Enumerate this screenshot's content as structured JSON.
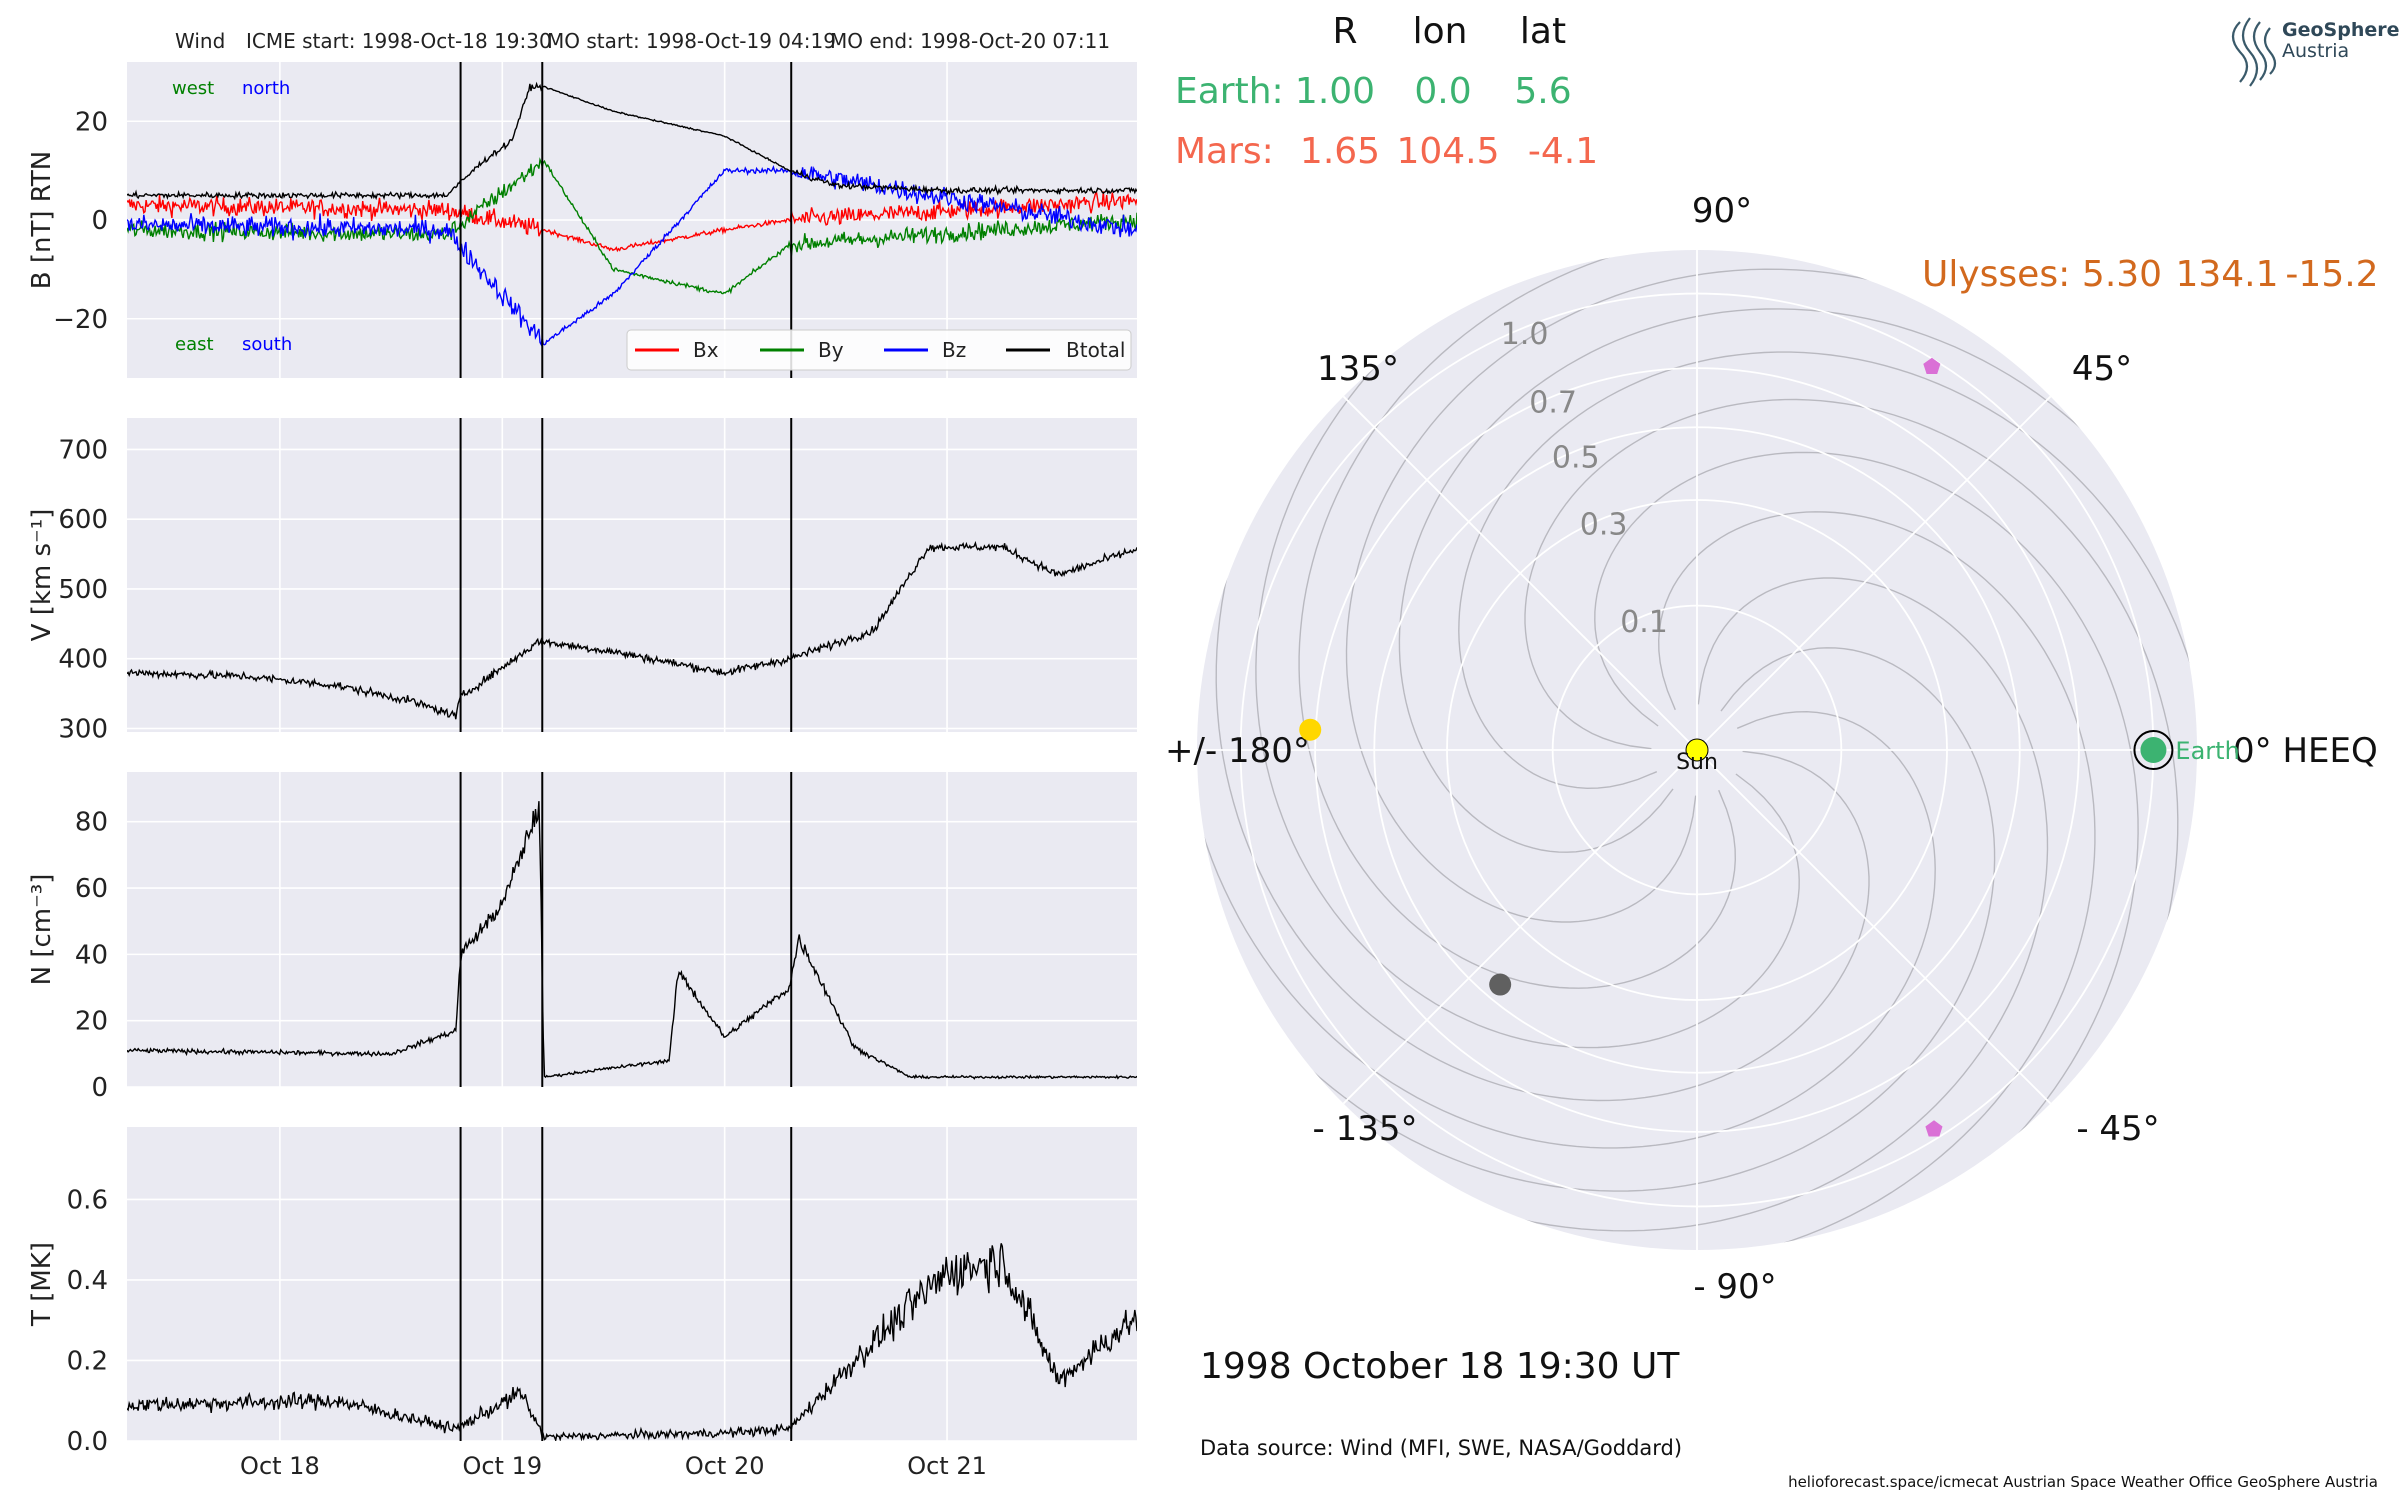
{
  "header": {
    "spacecraft": "Wind",
    "icme_start": "ICME start: 1998-Oct-18 19:30",
    "mo_start": "MO start: 1998-Oct-19 04:19",
    "mo_end": "MO end: 1998-Oct-20 07:11"
  },
  "logo": {
    "line1": "GeoSphere",
    "line2": "Austria"
  },
  "position_table": {
    "columns": [
      "R",
      "lon",
      "lat"
    ],
    "rows": [
      {
        "name": "Earth:",
        "R": "1.00",
        "lon": "0.0",
        "lat": "5.6",
        "color": "#3cb371"
      },
      {
        "name": "Mars:",
        "R": "1.65",
        "lon": "104.5",
        "lat": "-4.1",
        "color": "#f4674e"
      }
    ],
    "ulysses": {
      "name": "Ulysses:",
      "R": "5.30",
      "lon": "134.1",
      "lat": "-15.2",
      "color": "#d2691e"
    }
  },
  "polar": {
    "angle_labels": [
      "90°",
      "45°",
      "0° HEEQ",
      "- 45°",
      "- 90°",
      "- 135°",
      "+/- 180°",
      "135°"
    ],
    "radial_ticks": [
      "0.1",
      "0.3",
      "0.5",
      "0.7",
      "1.0"
    ],
    "radial_values": [
      0.1,
      0.3,
      0.5,
      0.7,
      1.0
    ],
    "sun_label": "Sun",
    "earth_label": "Earth",
    "bodies": [
      {
        "name": "Earth",
        "r": 1.0,
        "lon": 0.0,
        "color": "#3cb371",
        "marker": "circle"
      },
      {
        "name": "unlabeled",
        "r": 0.72,
        "lon": 177.0,
        "color": "#ffd700",
        "marker": "circle"
      },
      {
        "name": "unlabeled",
        "r": 0.45,
        "lon": -130.0,
        "color": "#606060",
        "marker": "circle"
      },
      {
        "name": "unlabeled",
        "r": 0.97,
        "lon": 58.5,
        "color": "#da70d6",
        "marker": "pentagon"
      },
      {
        "name": "unlabeled",
        "r": 0.96,
        "lon": -58.0,
        "color": "#da70d6",
        "marker": "pentagon"
      }
    ]
  },
  "date_text": "1998 October 18  19:30 UT",
  "data_source": "Data source: Wind (MFI, SWE, NASA/Goddard)",
  "footer": "helioforecast.space/icmecat   Austrian Space Weather Office   GeoSphere Austria",
  "colors": {
    "bx": "#ff0000",
    "by": "#008000",
    "bz": "#0000ff",
    "btotal": "#000000",
    "panel_bg": "#eaeaf2",
    "grid": "#ffffff"
  },
  "chart_data": [
    {
      "type": "line",
      "ylabel": "B [nT] RTN",
      "ylim": [
        -32,
        32
      ],
      "yticks": [
        20,
        0,
        -20
      ],
      "ytick_labels": [
        "20",
        "0",
        "−20"
      ],
      "annotations": {
        "west": "west",
        "north": "north",
        "east": "east",
        "south": "south"
      },
      "legend": [
        "Bx",
        "By",
        "Bz",
        "Btotal"
      ],
      "legend_placement": "lower-right",
      "xlim_days": [
        "1998-10-17 07:30",
        "1998-10-21 20:30"
      ],
      "event_lines": [
        "1998-10-18 19:30",
        "1998-10-19 04:19",
        "1998-10-20 07:11"
      ],
      "series": [
        {
          "name": "Btotal",
          "x": [
            "1998-10-17 08:00",
            "1998-10-18 00:00",
            "1998-10-18 18:00",
            "1998-10-18 22:00",
            "1998-10-19 01:00",
            "1998-10-19 03:00",
            "1998-10-19 04:30",
            "1998-10-19 12:00",
            "1998-10-20 00:00",
            "1998-10-20 07:00",
            "1998-10-20 12:00",
            "1998-10-21 00:00",
            "1998-10-21 20:00"
          ],
          "y": [
            5,
            5,
            5,
            12,
            16,
            27,
            27,
            22,
            17,
            10,
            7,
            6,
            6
          ]
        },
        {
          "name": "Bx",
          "x": [
            "1998-10-17 08:00",
            "1998-10-18 18:00",
            "1998-10-19 04:30",
            "1998-10-19 12:00",
            "1998-10-20 00:00",
            "1998-10-20 07:00",
            "1998-10-21 20:00"
          ],
          "y": [
            3,
            2,
            -2,
            -6,
            -2,
            0,
            4
          ]
        },
        {
          "name": "By",
          "x": [
            "1998-10-17 08:00",
            "1998-10-18 18:00",
            "1998-10-19 04:30",
            "1998-10-19 12:00",
            "1998-10-20 00:00",
            "1998-10-20 07:00",
            "1998-10-21 20:00"
          ],
          "y": [
            -2,
            -3,
            12,
            -10,
            -15,
            -5,
            0
          ]
        },
        {
          "name": "Bz",
          "x": [
            "1998-10-17 08:00",
            "1998-10-18 18:00",
            "1998-10-19 04:30",
            "1998-10-19 12:00",
            "1998-10-20 00:00",
            "1998-10-20 07:00",
            "1998-10-21 20:00"
          ],
          "y": [
            -1,
            -2,
            -25,
            -15,
            10,
            10,
            -2
          ]
        }
      ]
    },
    {
      "type": "line",
      "ylabel": "V [km s⁻¹]",
      "ylim": [
        295,
        745
      ],
      "yticks": [
        700,
        600,
        500,
        400,
        300
      ],
      "series": [
        {
          "name": "V",
          "x": [
            "1998-10-17 08:00",
            "1998-10-17 20:00",
            "1998-10-18 06:00",
            "1998-10-18 14:00",
            "1998-10-18 19:00",
            "1998-10-18 19:30",
            "1998-10-19 04:00",
            "1998-10-19 12:00",
            "1998-10-20 00:00",
            "1998-10-20 07:00",
            "1998-10-20 16:00",
            "1998-10-20 22:00",
            "1998-10-21 06:00",
            "1998-10-21 12:00",
            "1998-10-21 20:00"
          ],
          "y": [
            380,
            375,
            362,
            340,
            318,
            345,
            425,
            410,
            380,
            400,
            440,
            560,
            560,
            520,
            555
          ]
        }
      ]
    },
    {
      "type": "line",
      "ylabel": "N [cm⁻³]",
      "ylim": [
        0,
        95
      ],
      "yticks": [
        80,
        60,
        40,
        20,
        0
      ],
      "series": [
        {
          "name": "N",
          "x": [
            "1998-10-17 08:00",
            "1998-10-18 12:00",
            "1998-10-18 19:00",
            "1998-10-18 19:30",
            "1998-10-19 00:00",
            "1998-10-19 04:00",
            "1998-10-19 04:30",
            "1998-10-19 18:00",
            "1998-10-19 19:00",
            "1998-10-20 00:00",
            "1998-10-20 07:00",
            "1998-10-20 08:00",
            "1998-10-20 14:00",
            "1998-10-20 20:00",
            "1998-10-21 20:00"
          ],
          "y": [
            11,
            10,
            17,
            40,
            55,
            85,
            3,
            8,
            35,
            15,
            30,
            45,
            12,
            3,
            3
          ]
        }
      ]
    },
    {
      "type": "line",
      "ylabel": "T [MK]",
      "ylim": [
        0,
        0.78
      ],
      "yticks": [
        0.6,
        0.4,
        0.2,
        0.0
      ],
      "ytick_labels": [
        "0.6",
        "0.4",
        "0.2",
        "0.0"
      ],
      "xticks": [
        "Oct 18",
        "Oct 19",
        "Oct 20",
        "Oct 21"
      ],
      "series": [
        {
          "name": "T",
          "x": [
            "1998-10-17 08:00",
            "1998-10-18 06:00",
            "1998-10-18 19:00",
            "1998-10-19 02:00",
            "1998-10-19 04:30",
            "1998-10-20 00:00",
            "1998-10-20 07:00",
            "1998-10-20 14:00",
            "1998-10-21 00:00",
            "1998-10-21 06:00",
            "1998-10-21 12:00",
            "1998-10-21 20:00"
          ],
          "y": [
            0.09,
            0.1,
            0.03,
            0.12,
            0.01,
            0.02,
            0.03,
            0.2,
            0.42,
            0.45,
            0.15,
            0.3
          ]
        }
      ]
    }
  ]
}
